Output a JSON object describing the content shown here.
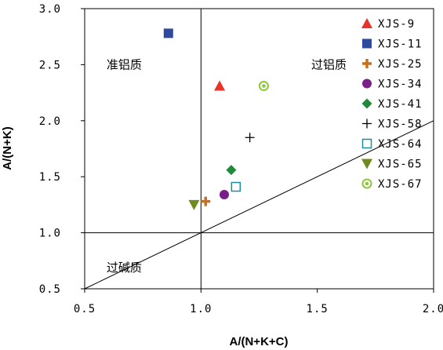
{
  "chart_data": {
    "type": "scatter",
    "title": "",
    "xlabel": "A/(N+K+C)",
    "ylabel": "A/(N+K)",
    "xlim": [
      0.5,
      2.0
    ],
    "ylim": [
      0.5,
      3.0
    ],
    "x_ticks": [
      "0.5",
      "1.0",
      "1.5",
      "2.0"
    ],
    "y_ticks": [
      "0.5",
      "1.0",
      "1.5",
      "2.0",
      "2.5",
      "3.0"
    ],
    "grid": false,
    "legend_position": "right",
    "region_labels": [
      {
        "text": "准铝质",
        "x": 0.67,
        "y": 2.5
      },
      {
        "text": "过铝质",
        "x": 1.55,
        "y": 2.5
      },
      {
        "text": "过碱质",
        "x": 0.67,
        "y": 0.69
      }
    ],
    "reference_lines": [
      {
        "name": "vertical",
        "x1": 1.0,
        "y1": 0.5,
        "x2": 1.0,
        "y2": 3.0
      },
      {
        "name": "horizontal",
        "x1": 0.5,
        "y1": 1.0,
        "x2": 2.0,
        "y2": 1.0
      },
      {
        "name": "diagonal",
        "x1": 0.5,
        "y1": 0.5,
        "x2": 2.0,
        "y2": 2.0
      }
    ],
    "series": [
      {
        "name": "XJS-9",
        "marker": "triangle-up",
        "color": "#e8332a",
        "x": [
          1.08
        ],
        "y": [
          2.31
        ]
      },
      {
        "name": "XJS-11",
        "marker": "square",
        "color": "#2e4a9e",
        "x": [
          0.86
        ],
        "y": [
          2.78
        ]
      },
      {
        "name": "XJS-25",
        "marker": "plus-thick",
        "color": "#c8701e",
        "x": [
          1.02
        ],
        "y": [
          1.28
        ]
      },
      {
        "name": "XJS-34",
        "marker": "circle",
        "color": "#7a1f8a",
        "x": [
          1.1
        ],
        "y": [
          1.34
        ]
      },
      {
        "name": "XJS-41",
        "marker": "diamond",
        "color": "#1f8a3a",
        "x": [
          1.13
        ],
        "y": [
          1.56
        ]
      },
      {
        "name": "XJS-58",
        "marker": "plus-thin",
        "color": "#000000",
        "x": [
          1.21
        ],
        "y": [
          1.85
        ]
      },
      {
        "name": "XJS-64",
        "marker": "square-open",
        "color": "#1a8f9a",
        "x": [
          1.15
        ],
        "y": [
          1.41
        ]
      },
      {
        "name": "XJS-65",
        "marker": "triangle-down",
        "color": "#6f8a1e",
        "x": [
          0.97
        ],
        "y": [
          1.25
        ]
      },
      {
        "name": "XJS-67",
        "marker": "circle-ring",
        "color": "#8cc83a",
        "x": [
          1.27
        ],
        "y": [
          2.31
        ]
      }
    ]
  }
}
